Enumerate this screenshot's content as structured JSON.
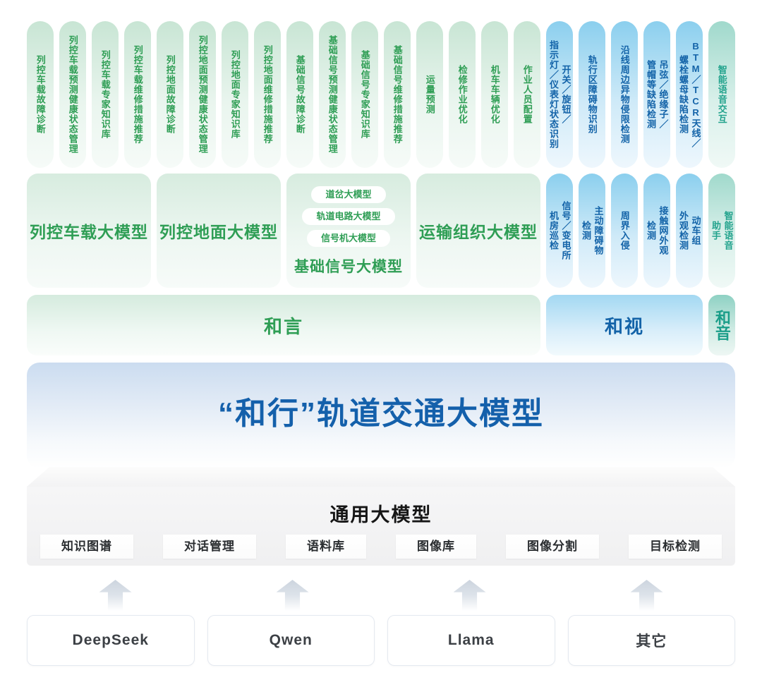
{
  "top_pills": [
    {
      "label": "列控车载故障诊断"
    },
    {
      "label": "列控车载预测健康状态管理"
    },
    {
      "label": "列控车载专家知识库"
    },
    {
      "label": "列控车载维修措施推荐"
    },
    {
      "label": "列控地面故障诊断"
    },
    {
      "label": "列控地面预测健康状态管理"
    },
    {
      "label": "列控地面专家知识库"
    },
    {
      "label": "列控地面维修措施推荐"
    },
    {
      "label": "基础信号故障诊断"
    },
    {
      "label": "基础信号预测健康状态管理"
    },
    {
      "label": "基础信号专家知识库"
    },
    {
      "label": "基础信号维修措施推荐"
    },
    {
      "label": "运量预测"
    },
    {
      "label": "检修作业优化"
    },
    {
      "label": "机车车辆优化"
    },
    {
      "label": "作业人员配置"
    },
    {
      "label": "指示灯／仪表灯状态识别\n开关／旋钮／"
    },
    {
      "label": "轨行区障碍物识别"
    },
    {
      "label": "沿线周边异物侵限检测"
    },
    {
      "label": "吊弦／绝缘子／\n管帽等缺陷检测"
    },
    {
      "label": "BTM／TCR天线／\n螺栓螺母缺陷检测"
    },
    {
      "label": "智能语音交互"
    }
  ],
  "model_groups": [
    {
      "label": "列控车载大模型"
    },
    {
      "label": "列控地面大模型"
    },
    {
      "label": "基础信号大模型",
      "sub_pills": [
        "道岔大模型",
        "轨道电路大模型",
        "信号机大模型"
      ]
    },
    {
      "label": "运输组织大模型"
    }
  ],
  "scene_pills": [
    {
      "label": "信号／变电所\n机房巡检"
    },
    {
      "label": "主动障碍物\n检测"
    },
    {
      "label": "周界入侵"
    },
    {
      "label": "接触网外观\n检测"
    },
    {
      "label": "动车组\n外观检测"
    },
    {
      "label": "智能语音\n助手"
    }
  ],
  "bands": [
    {
      "label": "和言"
    },
    {
      "label": "和视"
    },
    {
      "label": "和音"
    }
  ],
  "core_model_title": "“和行”轨道交通大模型",
  "general_platform": {
    "title": "通用大模型",
    "capabilities": [
      "知识图谱",
      "对话管理",
      "语料库",
      "图像库",
      "图像分割",
      "目标检测"
    ]
  },
  "foundation_models": [
    {
      "name": "DeepSeek"
    },
    {
      "name": "Qwen"
    },
    {
      "name": "Llama"
    },
    {
      "name": "其它"
    }
  ],
  "colors": {
    "green_text": "#2f9e55",
    "blue_text": "#1363a8",
    "teal_text": "#23a38d",
    "title_blue": "#1460ab",
    "pill_green_top": "#c8e5d4",
    "pill_blue_top": "#8bcfee",
    "pill_teal_top": "#a0d9cc"
  }
}
